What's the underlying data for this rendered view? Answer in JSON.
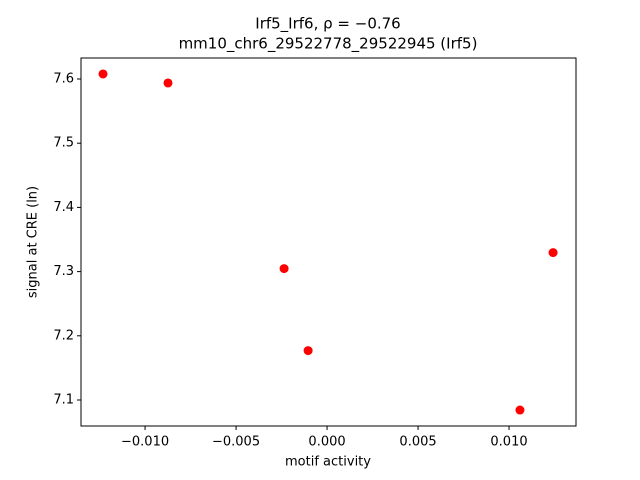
{
  "chart_data": {
    "type": "scatter",
    "title": "Irf5_Irf6, ρ = −0.76",
    "subtitle": "mm10_chr6_29522778_29522945 (Irf5)",
    "x_label": "motif activity",
    "y_label": "signal at CRE (ln)",
    "color": "#ff0000",
    "x": [
      -0.01231,
      -0.00874,
      -0.00236,
      -0.00104,
      0.0106,
      0.01242
    ],
    "values": [
      7.6078,
      7.5938,
      7.3047,
      7.177,
      7.0844,
      7.3296
    ],
    "xlim": [
      -0.01352,
      0.01368
    ],
    "ylim": [
      7.0595,
      7.6327
    ],
    "xticks": [
      {
        "value": -0.01,
        "label": "−0.010"
      },
      {
        "value": -0.005,
        "label": "−0.005"
      },
      {
        "value": 0,
        "label": "0.000"
      },
      0.005,
      {
        "value": 0.01,
        "label": "0.010"
      }
    ],
    "yticks": [
      7.1,
      7.2,
      7.3,
      7.4,
      7.5,
      7.6
    ]
  }
}
